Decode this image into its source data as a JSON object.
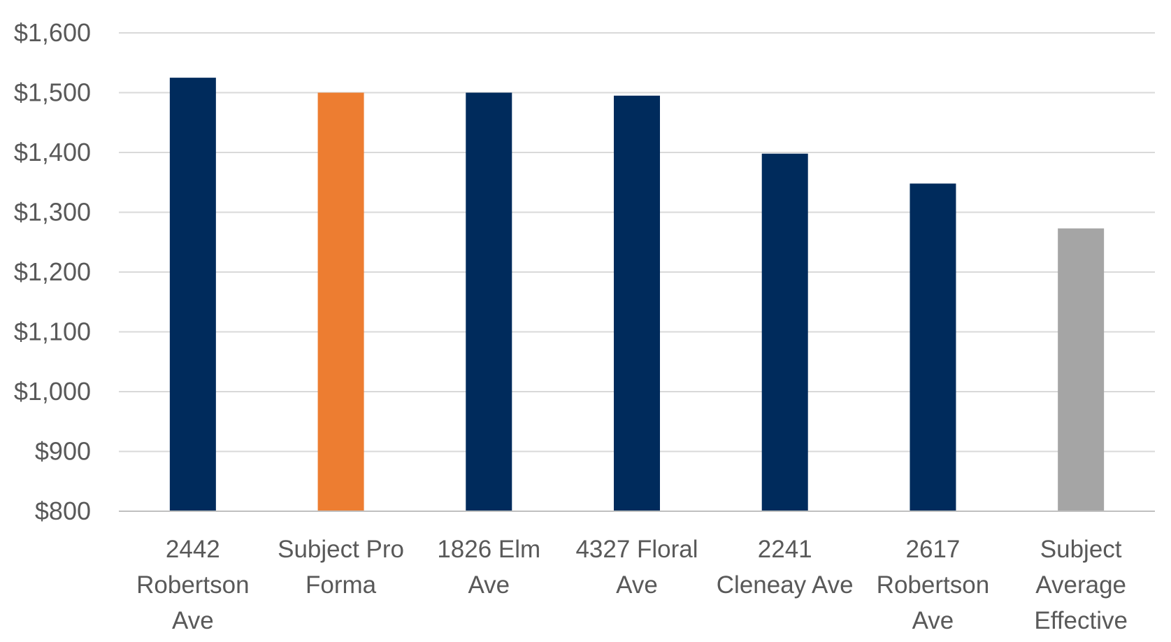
{
  "chart_data": {
    "type": "bar",
    "categories": [
      [
        "2442",
        "Robertson",
        "Ave"
      ],
      [
        "Subject Pro",
        "Forma"
      ],
      [
        "1826 Elm",
        "Ave"
      ],
      [
        "4327 Floral",
        "Ave"
      ],
      [
        "2241",
        "Cleneay Ave"
      ],
      [
        "2617",
        "Robertson",
        "Ave"
      ],
      [
        "Subject",
        "Average",
        "Effective"
      ]
    ],
    "values": [
      1525,
      1500,
      1500,
      1495,
      1398,
      1348,
      1273
    ],
    "bar_colors": [
      "#002b5c",
      "#ed7d31",
      "#002b5c",
      "#002b5c",
      "#002b5c",
      "#002b5c",
      "#a5a5a5"
    ],
    "ylim": [
      800,
      1600
    ],
    "yticks": [
      800,
      900,
      1000,
      1100,
      1200,
      1300,
      1400,
      1500,
      1600
    ],
    "ytick_labels": [
      "$800",
      "$900",
      "$1,000",
      "$1,100",
      "$1,200",
      "$1,300",
      "$1,400",
      "$1,500",
      "$1,600"
    ],
    "grid": true,
    "title": "",
    "xlabel": "",
    "ylabel": ""
  }
}
